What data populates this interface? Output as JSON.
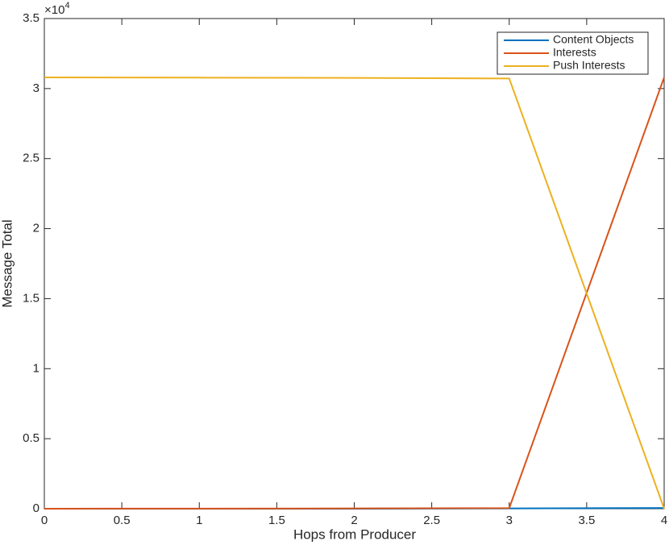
{
  "chart_data": {
    "type": "line",
    "xlabel": "Hops from Producer",
    "ylabel": "Message Total",
    "y_exponent": {
      "base": "×10",
      "power": "4"
    },
    "x": [
      0,
      1,
      2,
      3,
      4
    ],
    "series": [
      {
        "name": "Content Objects",
        "color": "#0072bd",
        "values": [
          0,
          0,
          0,
          0.002,
          0.005
        ]
      },
      {
        "name": "Interests",
        "color": "#d95319",
        "values": [
          0,
          0.001,
          0.002,
          0.004,
          3.08
        ]
      },
      {
        "name": "Push Interests",
        "color": "#edb120",
        "values": [
          3.08,
          3.078,
          3.076,
          3.072,
          0
        ]
      }
    ],
    "xlim": [
      0,
      4
    ],
    "xticks": [
      0,
      0.5,
      1,
      1.5,
      2,
      2.5,
      3,
      3.5,
      4
    ],
    "ylim": [
      0,
      3.5
    ],
    "yticks": [
      0,
      0.5,
      1,
      1.5,
      2,
      2.5,
      3,
      3.5
    ],
    "grid": false,
    "legend": "upper-right"
  }
}
